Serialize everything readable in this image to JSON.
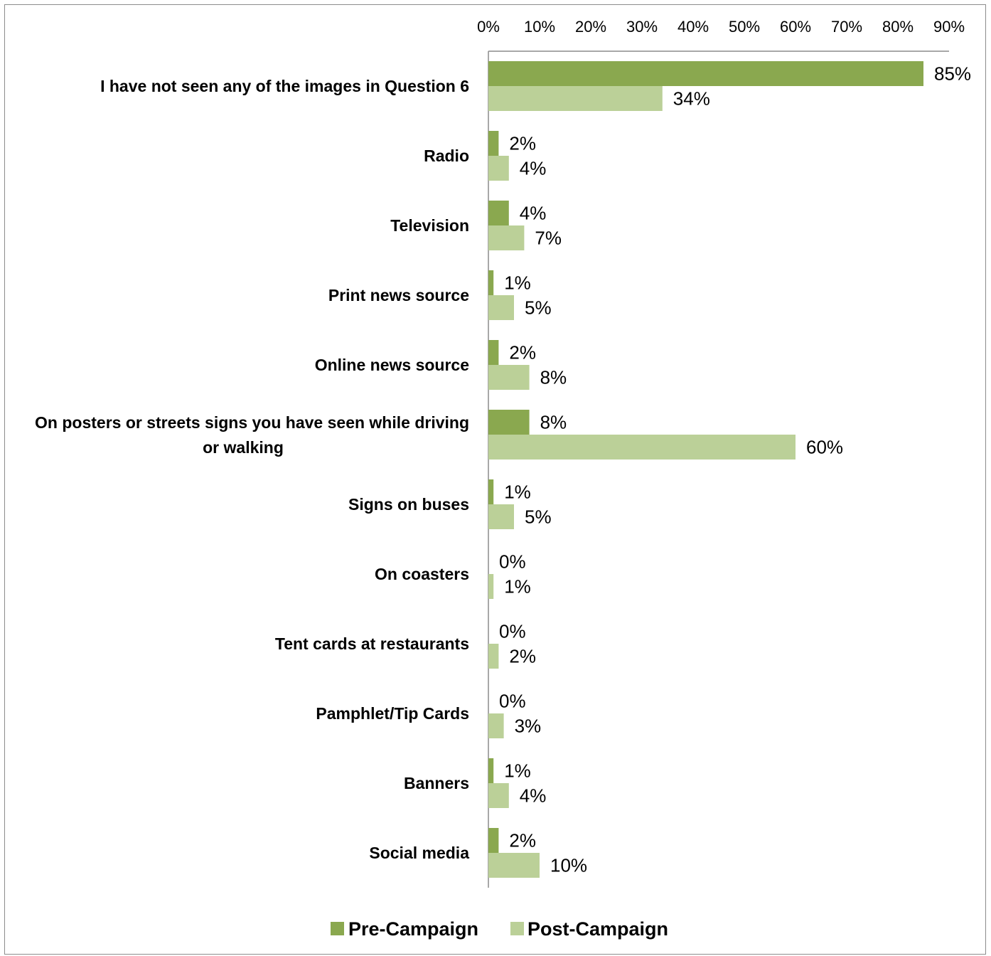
{
  "chart_data": {
    "type": "bar",
    "orientation": "horizontal",
    "title": "",
    "xlabel": "",
    "ylabel": "",
    "xlim": [
      0,
      90
    ],
    "x_ticks": [
      "0%",
      "10%",
      "20%",
      "30%",
      "40%",
      "50%",
      "60%",
      "70%",
      "80%",
      "90%"
    ],
    "x_tick_values": [
      0,
      10,
      20,
      30,
      40,
      50,
      60,
      70,
      80,
      90
    ],
    "axis_position": "top",
    "grid": false,
    "legend_position": "bottom",
    "categories": [
      [
        "I have not seen any of the images in Question 6"
      ],
      [
        "Radio"
      ],
      [
        "Television"
      ],
      [
        "Print news source"
      ],
      [
        "Online news source"
      ],
      [
        "On posters or streets signs you have seen while driving",
        "or walking"
      ],
      [
        "Signs on buses"
      ],
      [
        "On coasters"
      ],
      [
        "Tent cards at restaurants"
      ],
      [
        "Pamphlet/Tip Cards"
      ],
      [
        "Banners"
      ],
      [
        "Social media"
      ]
    ],
    "series": [
      {
        "name": "Pre-Campaign",
        "color": "#8aa84f",
        "values": [
          85,
          2,
          4,
          1,
          2,
          8,
          1,
          0,
          0,
          0,
          1,
          2
        ],
        "labels": [
          "85%",
          "2%",
          "4%",
          "1%",
          "2%",
          "8%",
          "1%",
          "0%",
          "0%",
          "0%",
          "1%",
          "2%"
        ]
      },
      {
        "name": "Post-Campaign",
        "color": "#bbd098",
        "values": [
          34,
          4,
          7,
          5,
          8,
          60,
          5,
          1,
          2,
          3,
          4,
          10
        ],
        "labels": [
          "34%",
          "4%",
          "7%",
          "5%",
          "8%",
          "60%",
          "5%",
          "1%",
          "2%",
          "3%",
          "4%",
          "10%"
        ]
      }
    ]
  }
}
